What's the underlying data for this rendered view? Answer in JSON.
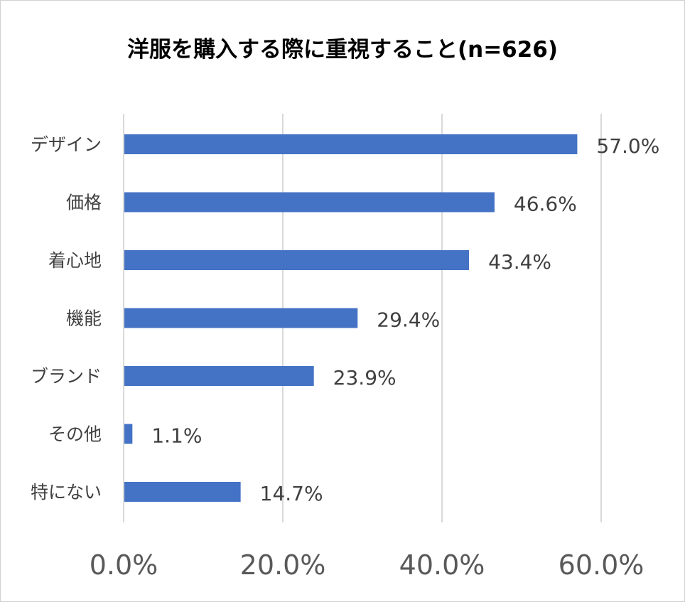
{
  "chart_data": {
    "type": "bar",
    "orientation": "horizontal",
    "title": "洋服を購入する際に重視すること(n=626)",
    "categories": [
      "デザイン",
      "価格",
      "着心地",
      "機能",
      "ブランド",
      "その他",
      "特にない"
    ],
    "values": [
      57.0,
      46.6,
      43.4,
      29.4,
      23.9,
      1.1,
      14.7
    ],
    "value_labels": [
      "57.0%",
      "46.6%",
      "43.4%",
      "29.4%",
      "23.9%",
      "1.1%",
      "14.7%"
    ],
    "xlim": [
      0,
      60
    ],
    "x_ticks": [
      0,
      20,
      40,
      60
    ],
    "x_tick_labels": [
      "0.0%",
      "20.0%",
      "40.0%",
      "60.0%"
    ],
    "xlabel": "",
    "ylabel": "",
    "grid": true,
    "legend": "none"
  },
  "colors": {
    "bar": "#4472c4",
    "grid": "#d9d9d9",
    "label": "#404040",
    "tick": "#595959"
  }
}
